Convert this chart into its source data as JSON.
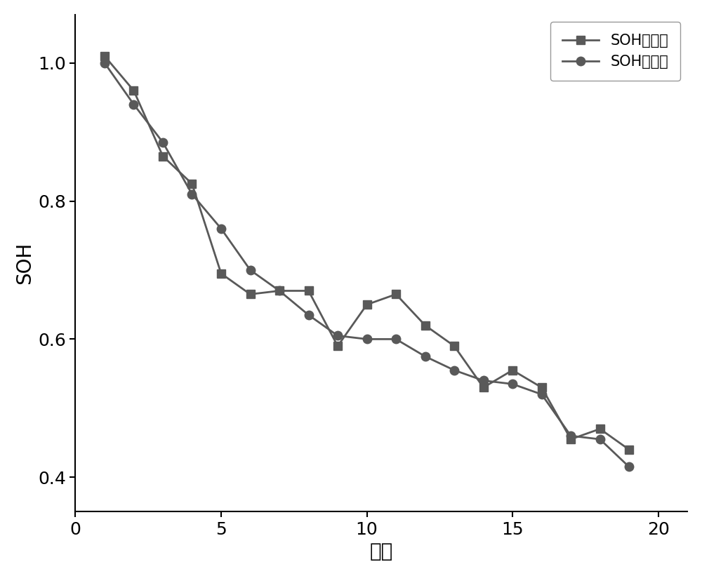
{
  "title": "",
  "xlabel": "周期",
  "ylabel": "SOH",
  "xlim": [
    0,
    21
  ],
  "ylim": [
    0.35,
    1.07
  ],
  "xticks": [
    0,
    5,
    10,
    15,
    20
  ],
  "yticks": [
    0.4,
    0.6,
    0.8,
    1.0
  ],
  "legend_labels": [
    "SOH估计值",
    "SOH定义值"
  ],
  "soh_estimated_x": [
    1,
    2,
    3,
    4,
    5,
    6,
    7,
    8,
    9,
    10,
    11,
    12,
    13,
    14,
    15,
    16,
    17,
    18,
    19
  ],
  "soh_estimated_y": [
    1.01,
    0.96,
    0.865,
    0.825,
    0.695,
    0.665,
    0.67,
    0.67,
    0.59,
    0.65,
    0.665,
    0.62,
    0.59,
    0.53,
    0.555,
    0.53,
    0.455,
    0.47,
    0.44
  ],
  "soh_defined_x": [
    1,
    2,
    3,
    4,
    5,
    6,
    7,
    8,
    9,
    10,
    11,
    12,
    13,
    14,
    15,
    16,
    17,
    18,
    19
  ],
  "soh_defined_y": [
    1.0,
    0.94,
    0.885,
    0.81,
    0.76,
    0.7,
    0.67,
    0.635,
    0.605,
    0.6,
    0.6,
    0.575,
    0.555,
    0.54,
    0.535,
    0.52,
    0.46,
    0.455,
    0.415
  ],
  "line_color": "#595959",
  "marker_square_color": "#595959",
  "marker_circle_color": "#595959",
  "line_width": 2.0,
  "marker_size": 9,
  "background_color": "#ffffff",
  "xlabel_fontsize": 20,
  "ylabel_fontsize": 20,
  "tick_fontsize": 18,
  "legend_fontsize": 15
}
